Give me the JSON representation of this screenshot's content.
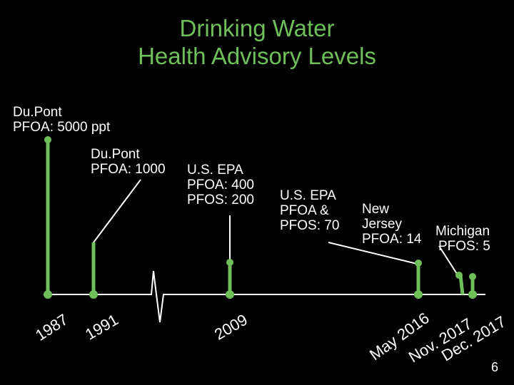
{
  "title": {
    "line1": "Drinking Water",
    "line2": "Health Advisory Levels"
  },
  "events": [
    {
      "label_lines": [
        "Du.Pont",
        "PFOA: 5000 ppt"
      ],
      "year": "1987"
    },
    {
      "label_lines": [
        "Du.Pont",
        "PFOA: 1000"
      ],
      "year": "1991"
    },
    {
      "label_lines": [
        "U.S. EPA",
        "PFOA: 400",
        "PFOS: 200"
      ],
      "year": "2009"
    },
    {
      "label_lines": [
        "U.S. EPA",
        "PFOA &",
        "PFOS: 70"
      ],
      "year": "May 2016"
    },
    {
      "label_lines": [
        "New",
        "Jersey",
        "PFOA: 14"
      ],
      "year": "Nov. 2017"
    },
    {
      "label_lines": [
        "Michigan",
        "PFOS: 5"
      ],
      "year": "Dec. 2017"
    }
  ],
  "colors": {
    "accent": "#6fbf5a",
    "background": "#000000",
    "text": "#ffffff"
  },
  "page_number": "6"
}
